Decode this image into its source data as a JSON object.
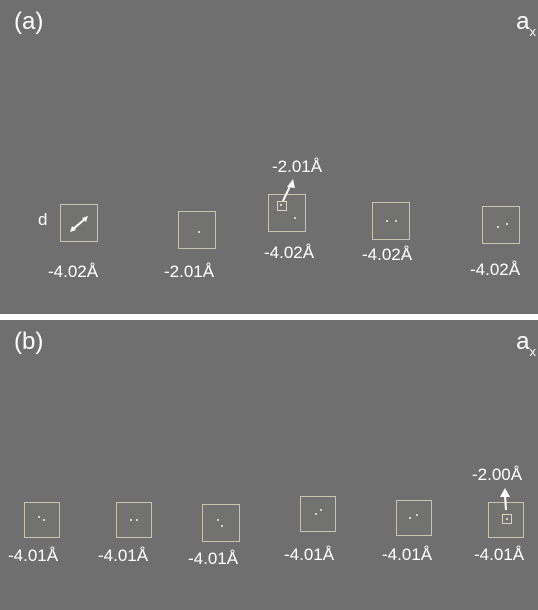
{
  "figure": {
    "panel_a": {
      "label": "(a)",
      "axis": {
        "base": "a",
        "sub": "x"
      },
      "d_label": "d",
      "values": [
        "-4.02Å",
        "-2.01Å",
        "-4.02Å",
        "-4.02Å",
        "-4.02Å"
      ],
      "inset_value": "-2.01Å"
    },
    "panel_b": {
      "label": "(b)",
      "axis": {
        "base": "a",
        "sub": "x"
      },
      "values": [
        "-4.01Å",
        "-4.01Å",
        "-4.01Å",
        "-4.01Å",
        "-4.01Å",
        "-4.01Å"
      ],
      "inset_value": "-2.00Å"
    },
    "colors": {
      "background": "#6f6f6f",
      "box_border": "#c8c4ad",
      "text": "#ffffff"
    }
  }
}
